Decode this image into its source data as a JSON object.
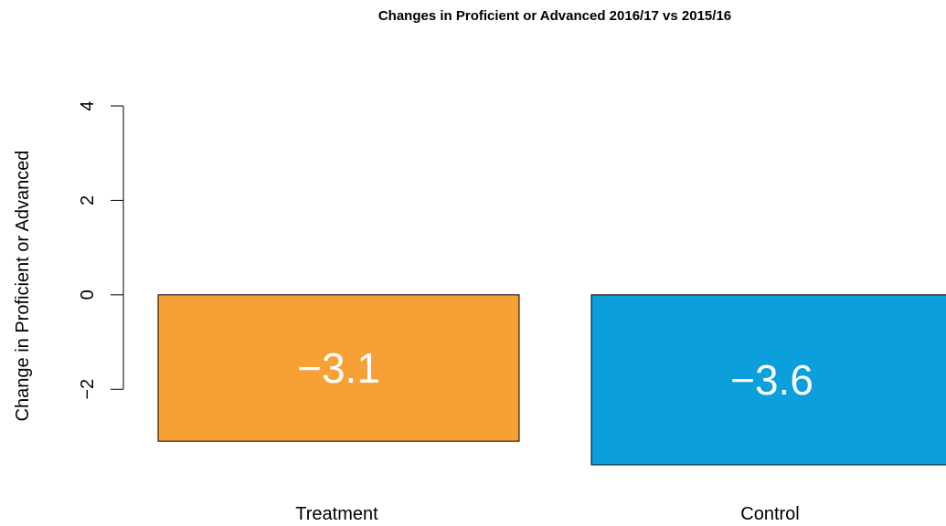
{
  "chart_data": {
    "type": "bar",
    "title": "Changes in Proficient or Advanced 2016/17 vs 2015/16",
    "y_label": "Change in Proficient or Advanced",
    "categories": [
      "Treatment",
      "Control"
    ],
    "values": [
      -3.1,
      -3.6
    ],
    "value_labels": [
      "−3.1",
      "−3.6"
    ],
    "colors": [
      "#f7a035",
      "#0ba0dc"
    ],
    "ylim": [
      -3.6,
      4
    ],
    "yticks": [
      {
        "value": -2,
        "label": "−2"
      },
      0,
      2,
      4
    ]
  }
}
